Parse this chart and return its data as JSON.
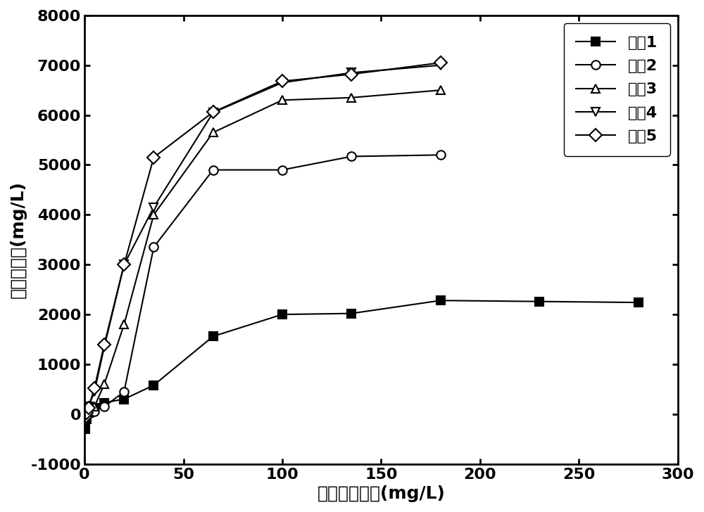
{
  "series": [
    {
      "label": "材料1",
      "marker": "s",
      "color": "#000000",
      "fillstyle": "full",
      "x": [
        0.5,
        1,
        2,
        5,
        10,
        20,
        35,
        65,
        100,
        135,
        180,
        230,
        280
      ],
      "y": [
        -300,
        -100,
        50,
        120,
        230,
        300,
        580,
        1560,
        2000,
        2020,
        2280,
        2260,
        2240
      ]
    },
    {
      "label": "材料2",
      "marker": "o",
      "color": "#000000",
      "fillstyle": "none",
      "x": [
        0.5,
        1,
        2,
        5,
        10,
        20,
        35,
        65,
        100,
        135,
        180
      ],
      "y": [
        -60,
        -20,
        20,
        60,
        150,
        450,
        3350,
        4900,
        4900,
        5170,
        5200
      ]
    },
    {
      "label": "材料3",
      "marker": "^",
      "color": "#000000",
      "fillstyle": "none",
      "x": [
        0.5,
        1,
        2,
        5,
        10,
        20,
        35,
        65,
        100,
        135,
        180
      ],
      "y": [
        -40,
        0,
        30,
        150,
        600,
        1800,
        4000,
        5650,
        6300,
        6350,
        6500
      ]
    },
    {
      "label": "材料4",
      "marker": "v",
      "color": "#000000",
      "fillstyle": "none",
      "x": [
        0.5,
        1,
        2,
        5,
        10,
        20,
        35,
        65,
        100,
        135,
        180
      ],
      "y": [
        -80,
        30,
        150,
        450,
        1350,
        3000,
        4150,
        6050,
        6650,
        6850,
        7000
      ]
    },
    {
      "label": "材料5",
      "marker": "D",
      "color": "#000000",
      "fillstyle": "none",
      "x": [
        0.5,
        1,
        2,
        5,
        10,
        20,
        35,
        65,
        100,
        135,
        180
      ],
      "y": [
        -60,
        20,
        130,
        520,
        1400,
        3000,
        5150,
        6060,
        6680,
        6820,
        7050
      ]
    }
  ],
  "xlabel": "平衡溶液浓度(mg/L)",
  "ylabel": "氨氮吸附量(mg/L)",
  "xlim": [
    0,
    300
  ],
  "ylim": [
    -1000,
    8000
  ],
  "xticks": [
    0,
    50,
    100,
    150,
    200,
    250,
    300
  ],
  "yticks": [
    -1000,
    0,
    1000,
    2000,
    3000,
    4000,
    5000,
    6000,
    7000,
    8000
  ],
  "background_color": "#ffffff",
  "markersize": 9,
  "linewidth": 1.5,
  "tick_fontsize": 16,
  "label_fontsize": 18,
  "legend_fontsize": 16
}
